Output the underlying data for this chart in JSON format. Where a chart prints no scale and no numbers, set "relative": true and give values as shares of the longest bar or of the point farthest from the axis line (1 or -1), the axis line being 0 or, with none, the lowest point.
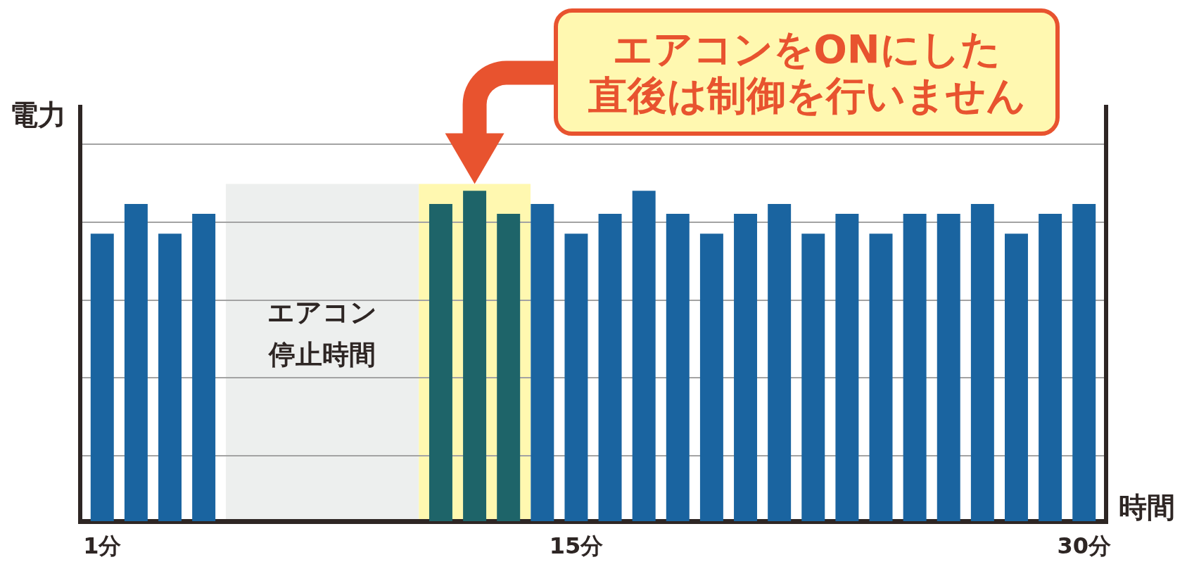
{
  "chart_data": {
    "type": "bar",
    "xlabel": "時間",
    "ylabel": "電力",
    "relative": true,
    "x": [
      1,
      2,
      3,
      4,
      5,
      6,
      7,
      8,
      9,
      10,
      11,
      12,
      13,
      14,
      15,
      16,
      17,
      18,
      19,
      20,
      21,
      22,
      23,
      24,
      25,
      26,
      27,
      28,
      29,
      30
    ],
    "values": [
      0.87,
      0.96,
      0.87,
      0.93,
      null,
      null,
      null,
      null,
      null,
      null,
      0.96,
      1,
      0.93,
      0.96,
      0.87,
      0.93,
      1,
      0.93,
      0.87,
      0.93,
      0.96,
      0.87,
      0.93,
      0.87,
      0.93,
      0.93,
      0.96,
      0.87,
      0.93,
      0.96
    ],
    "colors": [
      "#1a64a0",
      "#1a64a0",
      "#1a64a0",
      "#1a64a0",
      "#1a64a0",
      "#1a64a0",
      "#1a64a0",
      "#1a64a0",
      "#1a64a0",
      "#1a64a0",
      "#1e6469",
      "#1e6469",
      "#1e6469",
      "#1a64a0",
      "#1a64a0",
      "#1a64a0",
      "#1a64a0",
      "#1a64a0",
      "#1a64a0",
      "#1a64a0",
      "#1a64a0",
      "#1a64a0",
      "#1a64a0",
      "#1a64a0",
      "#1a64a0",
      "#1a64a0",
      "#1a64a0",
      "#1a64a0",
      "#1a64a0",
      "#1a64a0"
    ],
    "xlim": [
      0.35,
      30.65
    ],
    "xticks": [
      {
        "value": 1,
        "label": "1分"
      },
      {
        "value": 15,
        "label": "15分"
      },
      {
        "value": 30,
        "label": "30分"
      }
    ],
    "bands": [
      {
        "axis": "x",
        "from": 4.65,
        "to": 10.35,
        "label": "エアコン停止時間",
        "color": "#edefee"
      },
      {
        "axis": "x",
        "from": 10.35,
        "to": 13.65,
        "label": "エアコンをONにした直後は制御を行いません",
        "color": "#fff8b0"
      }
    ],
    "grid": "y"
  }
}
